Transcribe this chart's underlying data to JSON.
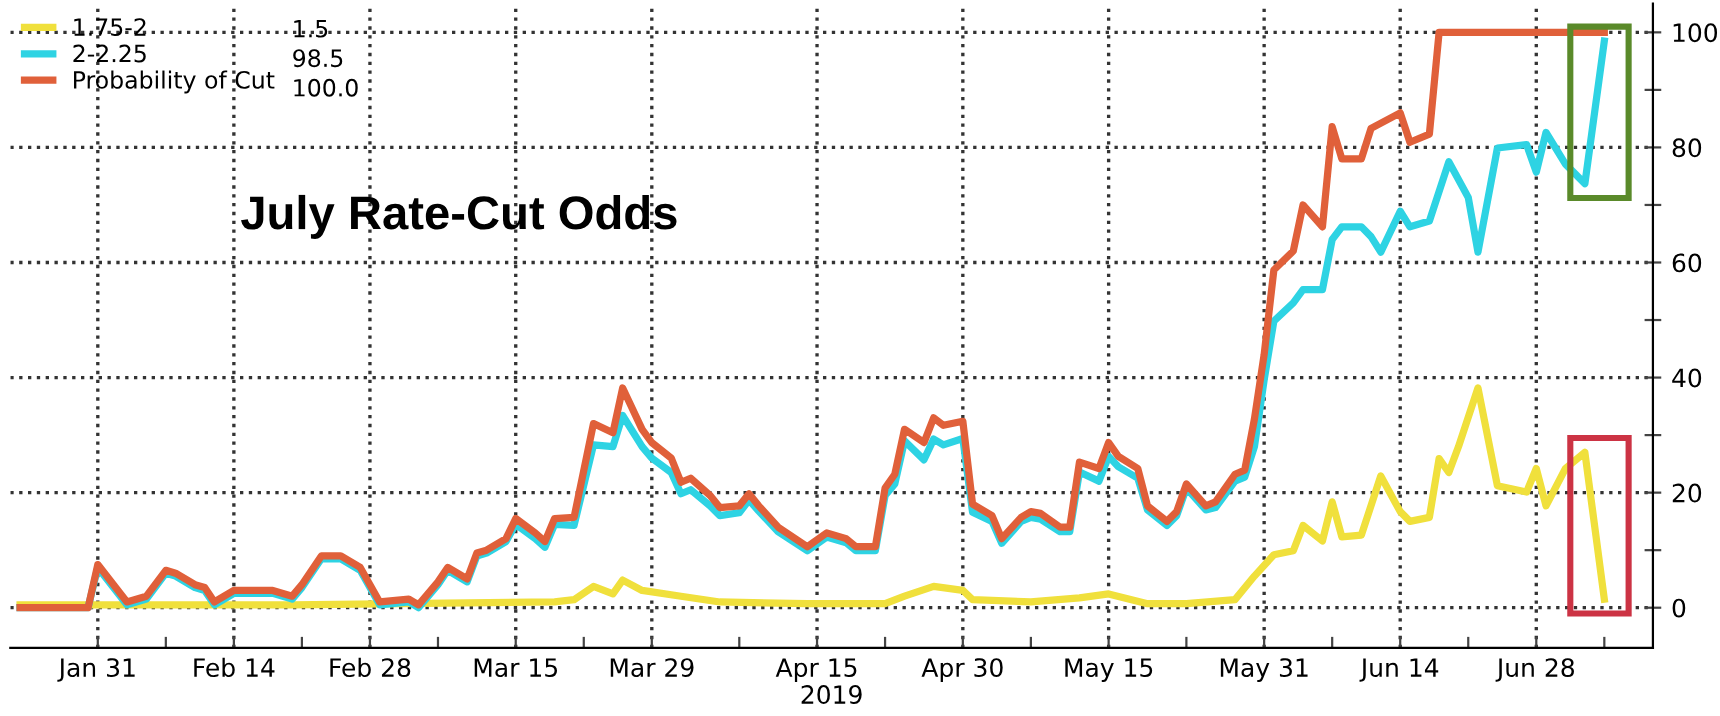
{
  "chart_data": {
    "type": "line",
    "title": "July Rate-Cut Odds",
    "xlabel": "2019",
    "xlim": [
      "2019-01-22",
      "2019-07-10"
    ],
    "xticks": [
      {
        "value": "2019-01-31",
        "label": "Jan 31"
      },
      {
        "value": "2019-02-07",
        "label": null
      },
      {
        "value": "2019-02-14",
        "label": "Feb 14"
      },
      {
        "value": "2019-02-21",
        "label": null
      },
      {
        "value": "2019-02-28",
        "label": "Feb 28"
      },
      {
        "value": "2019-03-07",
        "label": null
      },
      {
        "value": "2019-03-15",
        "label": "Mar 15"
      },
      {
        "value": "2019-03-22",
        "label": null
      },
      {
        "value": "2019-03-29",
        "label": "Mar 29"
      },
      {
        "value": "2019-04-07",
        "label": null
      },
      {
        "value": "2019-04-15",
        "label": "Apr 15"
      },
      {
        "value": "2019-04-22",
        "label": null
      },
      {
        "value": "2019-04-30",
        "label": "Apr 30"
      },
      {
        "value": "2019-05-07",
        "label": null
      },
      {
        "value": "2019-05-15",
        "label": "May 15"
      },
      {
        "value": "2019-05-23",
        "label": null
      },
      {
        "value": "2019-05-31",
        "label": "May 31"
      },
      {
        "value": "2019-06-07",
        "label": null
      },
      {
        "value": "2019-06-14",
        "label": "Jun 14"
      },
      {
        "value": "2019-06-21",
        "label": null
      },
      {
        "value": "2019-06-28",
        "label": "Jun 28"
      },
      {
        "value": "2019-07-05",
        "label": null
      }
    ],
    "ylim": [
      -7,
      105
    ],
    "yticks": [
      0,
      {
        "value": 10,
        "label": null
      },
      20,
      {
        "value": 30,
        "label": null
      },
      40,
      {
        "value": 50,
        "label": null
      },
      60,
      {
        "value": 70,
        "label": null
      },
      80,
      {
        "value": 90,
        "label": null
      },
      100
    ],
    "grid": true,
    "legend": "top left",
    "annotations": [
      "1.5",
      "98.5",
      "100.0"
    ],
    "series": [
      {
        "name": "1.75-2",
        "color": "#f0e03c",
        "x": [
          "2019-01-23",
          "2019-02-20",
          "2019-03-19",
          "2019-03-21",
          "2019-03-23",
          "2019-03-25",
          "2019-03-26",
          "2019-03-28",
          "2019-04-01",
          "2019-04-05",
          "2019-04-14",
          "2019-04-22",
          "2019-04-24",
          "2019-04-27",
          "2019-04-30",
          "2019-05-01",
          "2019-05-07",
          "2019-05-12",
          "2019-05-15",
          "2019-05-19",
          "2019-05-23",
          "2019-05-28",
          "2019-05-30",
          "2019-06-01",
          "2019-06-03",
          "2019-06-04",
          "2019-06-06",
          "2019-06-07",
          "2019-06-08",
          "2019-06-10",
          "2019-06-12",
          "2019-06-14",
          "2019-06-15",
          "2019-06-17",
          "2019-06-18",
          "2019-06-19",
          "2019-06-20",
          "2019-06-22",
          "2019-06-24",
          "2019-06-27",
          "2019-06-28",
          "2019-06-29",
          "2019-07-01",
          "2019-07-03",
          "2019-07-05"
        ],
        "values": [
          0.5,
          0.5,
          1,
          1.4,
          3.7,
          2.4,
          4.8,
          3,
          2,
          1,
          0.7,
          0.7,
          2,
          3.7,
          3,
          1.4,
          1,
          1.7,
          2.4,
          0.7,
          0.7,
          1.4,
          5.5,
          9.2,
          9.9,
          14.3,
          11.6,
          18.4,
          12.3,
          12.6,
          22.9,
          16.7,
          15,
          15.7,
          25.9,
          23.5,
          28,
          38.2,
          21.2,
          20.1,
          24.2,
          17.7,
          24.2,
          27,
          1.5
        ]
      },
      {
        "name": "2-2.25",
        "color": "#2ed3e3",
        "x": [
          "2019-01-23",
          "2019-01-30",
          "2019-01-31",
          "2019-02-03",
          "2019-02-05",
          "2019-02-07",
          "2019-02-08",
          "2019-02-10",
          "2019-02-11",
          "2019-02-12",
          "2019-02-14",
          "2019-02-18",
          "2019-02-20",
          "2019-02-21",
          "2019-02-23",
          "2019-02-25",
          "2019-02-27",
          "2019-03-01",
          "2019-03-04",
          "2019-03-05",
          "2019-03-07",
          "2019-03-08",
          "2019-03-10",
          "2019-03-11",
          "2019-03-12",
          "2019-03-14",
          "2019-03-15",
          "2019-03-17",
          "2019-03-18",
          "2019-03-19",
          "2019-03-21",
          "2019-03-23",
          "2019-03-25",
          "2019-03-26",
          "2019-03-28",
          "2019-03-29",
          "2019-03-31",
          "2019-04-01",
          "2019-04-02",
          "2019-04-04",
          "2019-04-05",
          "2019-04-07",
          "2019-04-08",
          "2019-04-09",
          "2019-04-11",
          "2019-04-14",
          "2019-04-16",
          "2019-04-18",
          "2019-04-19",
          "2019-04-21",
          "2019-04-22",
          "2019-04-23",
          "2019-04-24",
          "2019-04-26",
          "2019-04-27",
          "2019-04-28",
          "2019-04-30",
          "2019-05-01",
          "2019-05-03",
          "2019-05-04",
          "2019-05-06",
          "2019-05-07",
          "2019-05-08",
          "2019-05-10",
          "2019-05-11",
          "2019-05-12",
          "2019-05-14",
          "2019-05-15",
          "2019-05-16",
          "2019-05-18",
          "2019-05-19",
          "2019-05-21",
          "2019-05-22",
          "2019-05-23",
          "2019-05-25",
          "2019-05-26",
          "2019-05-28",
          "2019-05-29",
          "2019-05-30",
          "2019-05-31",
          "2019-06-01",
          "2019-06-03",
          "2019-06-04",
          "2019-06-06",
          "2019-06-07",
          "2019-06-08",
          "2019-06-10",
          "2019-06-11",
          "2019-06-12",
          "2019-06-14",
          "2019-06-15",
          "2019-06-17",
          "2019-06-19",
          "2019-06-21",
          "2019-06-22",
          "2019-06-24",
          "2019-06-27",
          "2019-06-28",
          "2019-06-29",
          "2019-07-01",
          "2019-07-03",
          "2019-07-05"
        ],
        "values": [
          0,
          0,
          7,
          0.5,
          1.5,
          6,
          5.5,
          3.5,
          3,
          0.5,
          2.5,
          2.5,
          1.5,
          3.5,
          8.5,
          8.5,
          6.5,
          0.5,
          1,
          0,
          4,
          6.5,
          4.5,
          9,
          9.5,
          11.5,
          14.5,
          12,
          10.5,
          14.5,
          14.3,
          28.3,
          28,
          33.4,
          28,
          26,
          23.5,
          19.8,
          20.5,
          17.7,
          16,
          16.5,
          18.7,
          16.8,
          13.2,
          9.9,
          12.3,
          11.3,
          9.9,
          9.9,
          19.5,
          21.5,
          29,
          25.7,
          29.3,
          28.3,
          29.4,
          16.6,
          15,
          11.2,
          15,
          15.7,
          15.4,
          13.2,
          13.2,
          23.6,
          22,
          26.3,
          24.5,
          22.5,
          17,
          14.3,
          16,
          20.8,
          17,
          17.4,
          22,
          22.7,
          28,
          39.6,
          49.8,
          53,
          55.3,
          55.3,
          64,
          66.2,
          66.2,
          64.5,
          61.8,
          68.9,
          66.2,
          67.2,
          77.5,
          71.3,
          61.8,
          79.9,
          80.5,
          75.7,
          82.6,
          77.1,
          73.7,
          98.5
        ]
      },
      {
        "name": "Probability of Cut",
        "color": "#e0603a",
        "x": [
          "2019-01-23",
          "2019-01-30",
          "2019-01-31",
          "2019-02-03",
          "2019-02-05",
          "2019-02-07",
          "2019-02-08",
          "2019-02-10",
          "2019-02-11",
          "2019-02-12",
          "2019-02-14",
          "2019-02-18",
          "2019-02-20",
          "2019-02-21",
          "2019-02-23",
          "2019-02-25",
          "2019-02-27",
          "2019-03-01",
          "2019-03-04",
          "2019-03-05",
          "2019-03-07",
          "2019-03-08",
          "2019-03-10",
          "2019-03-11",
          "2019-03-12",
          "2019-03-14",
          "2019-03-15",
          "2019-03-17",
          "2019-03-18",
          "2019-03-19",
          "2019-03-21",
          "2019-03-23",
          "2019-03-25",
          "2019-03-26",
          "2019-03-28",
          "2019-03-29",
          "2019-03-31",
          "2019-04-01",
          "2019-04-02",
          "2019-04-04",
          "2019-04-05",
          "2019-04-07",
          "2019-04-08",
          "2019-04-09",
          "2019-04-11",
          "2019-04-14",
          "2019-04-16",
          "2019-04-18",
          "2019-04-19",
          "2019-04-21",
          "2019-04-22",
          "2019-04-23",
          "2019-04-24",
          "2019-04-26",
          "2019-04-27",
          "2019-04-28",
          "2019-04-30",
          "2019-05-01",
          "2019-05-03",
          "2019-05-04",
          "2019-05-06",
          "2019-05-07",
          "2019-05-08",
          "2019-05-10",
          "2019-05-11",
          "2019-05-12",
          "2019-05-14",
          "2019-05-15",
          "2019-05-16",
          "2019-05-18",
          "2019-05-19",
          "2019-05-21",
          "2019-05-22",
          "2019-05-23",
          "2019-05-25",
          "2019-05-26",
          "2019-05-28",
          "2019-05-29",
          "2019-05-30",
          "2019-05-31",
          "2019-06-01",
          "2019-06-03",
          "2019-06-04",
          "2019-06-06",
          "2019-06-07",
          "2019-06-08",
          "2019-06-10",
          "2019-06-11",
          "2019-06-14",
          "2019-06-15",
          "2019-06-17",
          "2019-06-18",
          "2019-07-05"
        ],
        "values": [
          0,
          0,
          7.5,
          1,
          2,
          6.5,
          6,
          4,
          3.5,
          1,
          3,
          3,
          2,
          4,
          9,
          9,
          7,
          1,
          1.5,
          0.5,
          4.5,
          7,
          5,
          9.5,
          10,
          12,
          15.5,
          13,
          11.5,
          15.5,
          15.7,
          32,
          30.4,
          38.2,
          31,
          28.7,
          26,
          21.8,
          22.5,
          19.5,
          17.4,
          17.7,
          19.8,
          17.7,
          14,
          10.6,
          13,
          12,
          10.6,
          10.6,
          20.8,
          23.2,
          31,
          28.7,
          33,
          31.7,
          32.4,
          18,
          16,
          12,
          15.7,
          16.7,
          16.4,
          14,
          14,
          25.3,
          24.2,
          28.7,
          26.3,
          24.2,
          17.7,
          15,
          16.7,
          21.5,
          17.7,
          18.4,
          23.2,
          23.9,
          32.8,
          44,
          58.7,
          62,
          70,
          66.2,
          83.6,
          78,
          78,
          83.3,
          86,
          80.9,
          82.3,
          100,
          100
        ]
      }
    ]
  }
}
